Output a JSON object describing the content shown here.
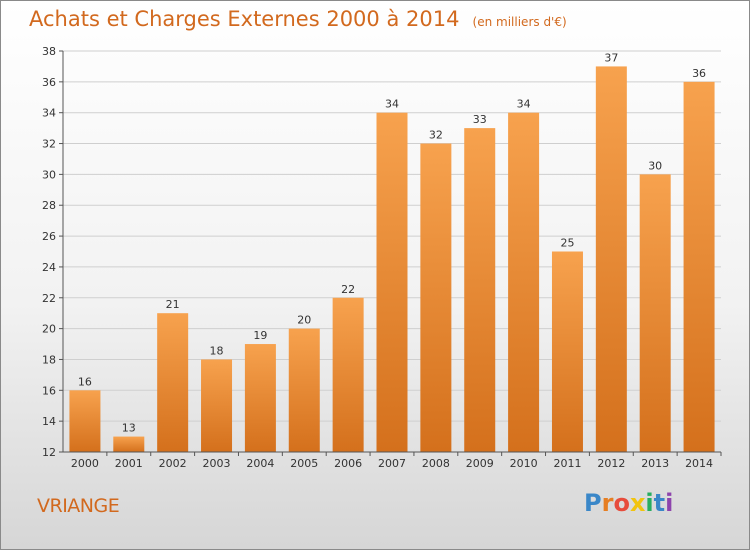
{
  "header": {
    "title": "Achats et Charges Externes 2000 à 2014",
    "unit": "(en milliers d'€)"
  },
  "footer": {
    "commune": "VRIANGE",
    "brand": "Proxiti",
    "brand_colors": [
      "#3a87c8",
      "#e67e22",
      "#e74c3c",
      "#f1c40f",
      "#27ae60",
      "#3a87c8",
      "#8e44ad"
    ]
  },
  "colors": {
    "bar_top": "#f7a24e",
    "bar_bottom": "#d4701c",
    "grid": "#cfcfcf",
    "title": "#d2691e"
  },
  "chart_data": {
    "type": "bar",
    "title": "Achats et Charges Externes 2000 à 2014",
    "subtitle": "(en milliers d'€)",
    "xlabel": "",
    "ylabel": "",
    "ylim": [
      12,
      38
    ],
    "yticks": [
      12,
      14,
      16,
      18,
      20,
      22,
      24,
      26,
      28,
      30,
      32,
      34,
      36,
      38
    ],
    "grid": true,
    "categories": [
      "2000",
      "2001",
      "2002",
      "2003",
      "2004",
      "2005",
      "2006",
      "2007",
      "2008",
      "2009",
      "2010",
      "2011",
      "2012",
      "2013",
      "2014"
    ],
    "values": [
      16,
      13,
      21,
      18,
      19,
      20,
      22,
      34,
      32,
      33,
      34,
      25,
      37,
      30,
      36
    ]
  }
}
